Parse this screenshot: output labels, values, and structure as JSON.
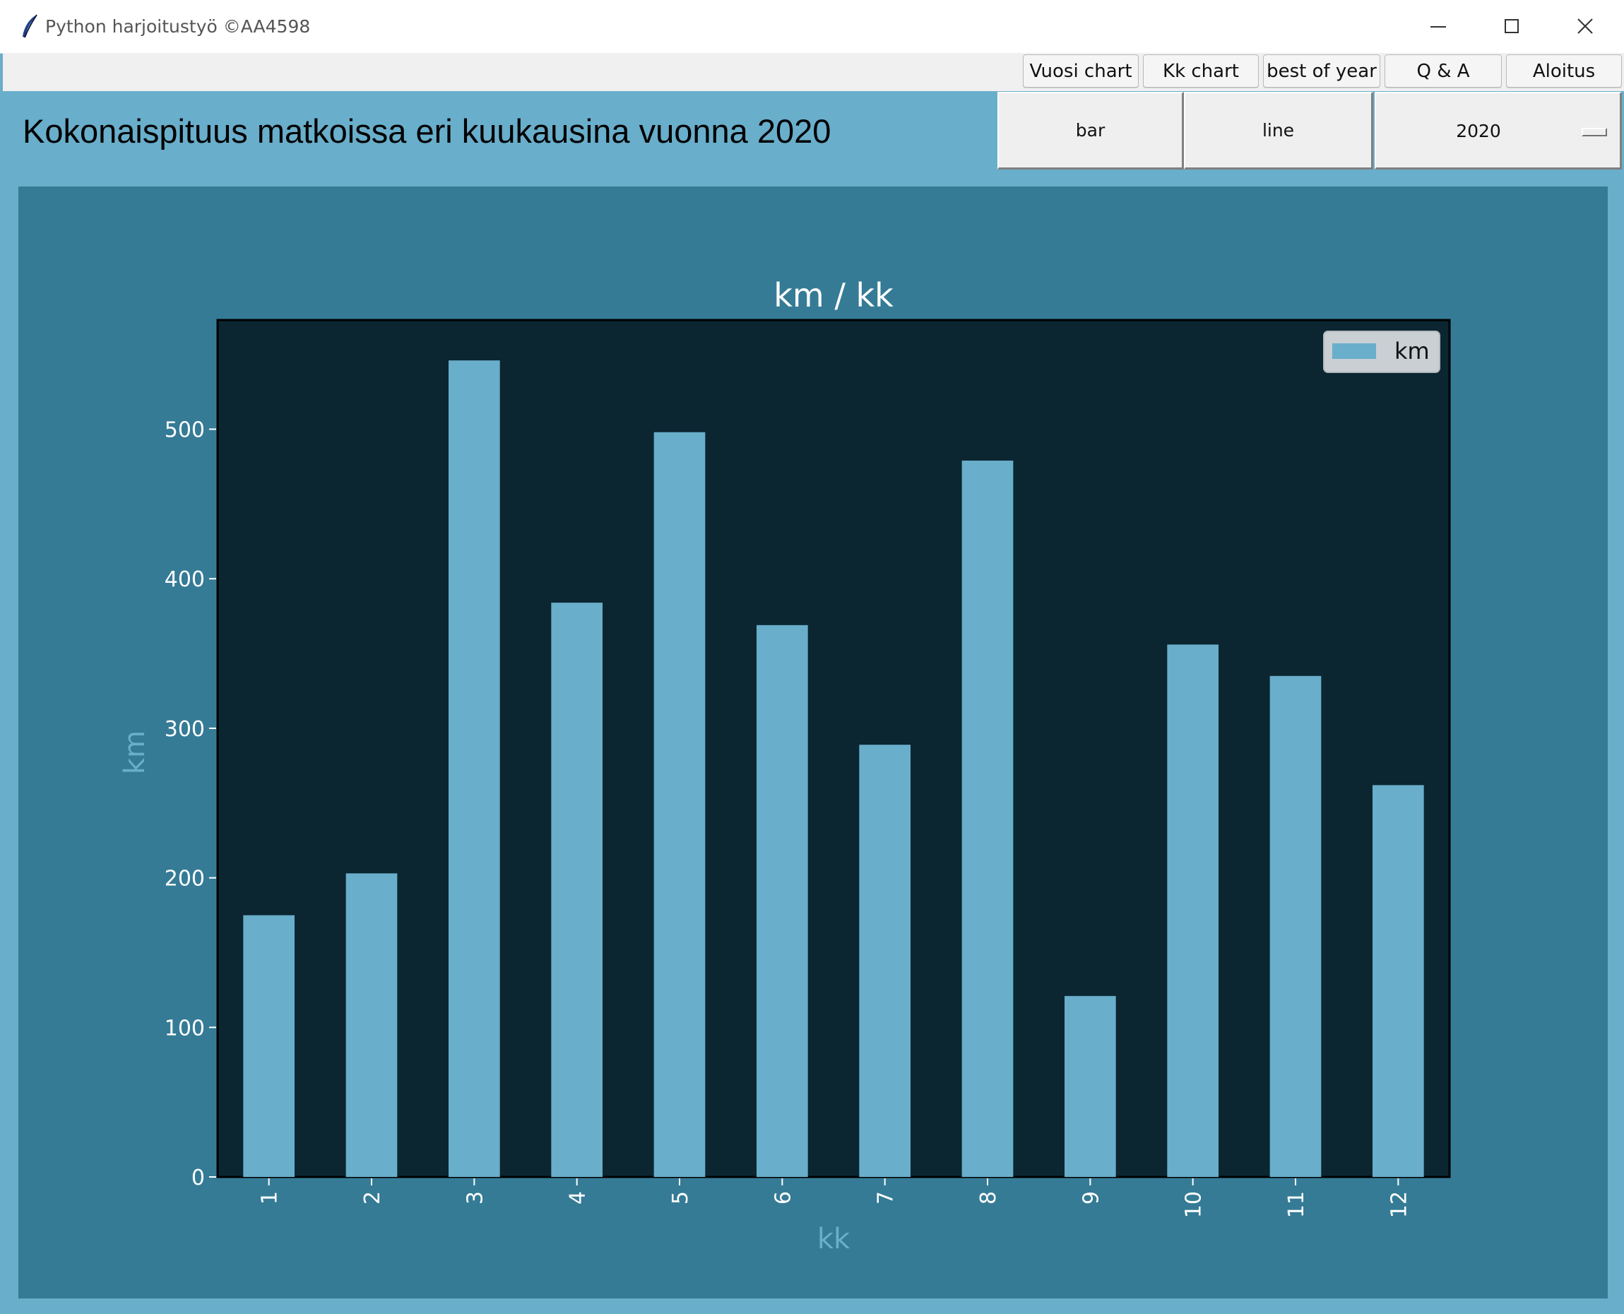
{
  "window": {
    "title": "Python harjoitustyö ©AA4598",
    "controls": {
      "minimize": "minimize-icon",
      "maximize": "maximize-icon",
      "close": "close-icon"
    }
  },
  "nav": {
    "vuosi_chart": "Vuosi chart",
    "kk_chart": "Kk chart",
    "best_of_year": "best of year",
    "qa": "Q & A",
    "aloitus": "Aloitus"
  },
  "heading": "Kokonaispituus matkoissa eri kuukausina vuonna 2020",
  "controls": {
    "bar": "bar",
    "line": "line",
    "year": "2020"
  },
  "colors": {
    "window_bg": "#69aecb",
    "chart_frame_bg": "#357b96",
    "plot_bg": "#0b2631",
    "bar": "#69aecb",
    "axis_label": "#69aecb"
  },
  "chart_data": {
    "type": "bar",
    "title": "km / kk",
    "xlabel": "kk",
    "ylabel": "km",
    "categories": [
      "1",
      "2",
      "3",
      "4",
      "5",
      "6",
      "7",
      "8",
      "9",
      "10",
      "11",
      "12"
    ],
    "series": [
      {
        "name": "km",
        "values": [
          175,
          203,
          546,
          384,
          498,
          369,
          289,
          479,
          121,
          356,
          335,
          262
        ]
      }
    ],
    "ylim": [
      0,
      573
    ],
    "yticks": [
      0,
      100,
      200,
      300,
      400,
      500
    ],
    "xtick_rotation": "vertical",
    "legend": "top-right",
    "grid": false
  }
}
